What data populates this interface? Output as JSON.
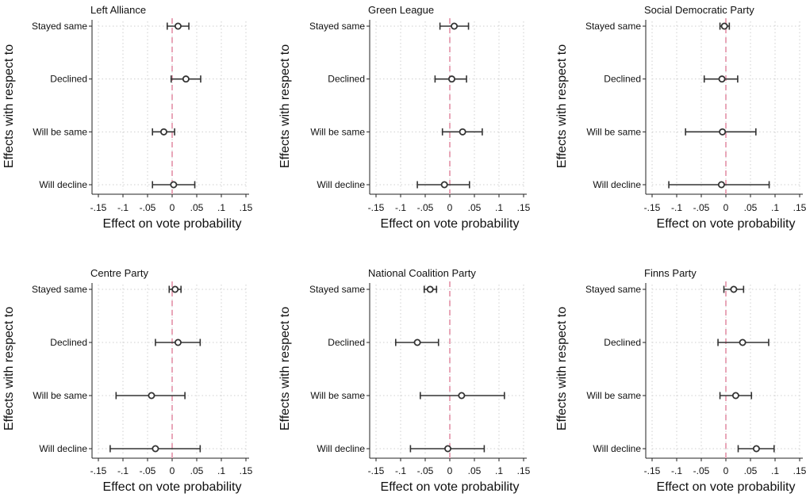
{
  "chart_data": [
    {
      "type": "coefficient-plot",
      "title": "Left Alliance",
      "xlabel": "Effect on vote probability",
      "ylabel": "Effects with respect to",
      "xlim": [
        -0.15,
        0.15
      ],
      "xticks": [
        "-.15",
        "-.1",
        "-.05",
        "0",
        ".05",
        ".1",
        ".15"
      ],
      "categories": [
        "Stayed same",
        "Declined",
        "Will be same",
        "Will decline"
      ],
      "estimate": [
        0.012,
        0.028,
        -0.017,
        0.003
      ],
      "ci_low": [
        -0.01,
        -0.002,
        -0.04,
        -0.04
      ],
      "ci_high": [
        0.034,
        0.058,
        0.005,
        0.046
      ],
      "reference_line": 0,
      "grid": true
    },
    {
      "type": "coefficient-plot",
      "title": "Green League",
      "xlabel": "Effect on vote probability",
      "ylabel": "Effects with respect to",
      "xlim": [
        -0.15,
        0.15
      ],
      "xticks": [
        "-.15",
        "-.1",
        "-.05",
        "0",
        ".05",
        ".1",
        ".15"
      ],
      "categories": [
        "Stayed same",
        "Declined",
        "Will be same",
        "Will decline"
      ],
      "estimate": [
        0.009,
        0.004,
        0.026,
        -0.011
      ],
      "ci_low": [
        -0.02,
        -0.03,
        -0.015,
        -0.066
      ],
      "ci_high": [
        0.038,
        0.034,
        0.066,
        0.04
      ],
      "reference_line": 0,
      "grid": true
    },
    {
      "type": "coefficient-plot",
      "title": "Social Democratic Party",
      "xlabel": "Effect on vote probability",
      "ylabel": "Effects with respect to",
      "xlim": [
        -0.15,
        0.15
      ],
      "xticks": [
        "-.15",
        "-.1",
        "-.05",
        "0",
        ".05",
        ".1",
        ".15"
      ],
      "categories": [
        "Stayed same",
        "Declined",
        "Will be same",
        "Will decline"
      ],
      "estimate": [
        -0.003,
        -0.008,
        -0.007,
        -0.009
      ],
      "ci_low": [
        -0.012,
        -0.044,
        -0.082,
        -0.116
      ],
      "ci_high": [
        0.007,
        0.024,
        0.061,
        0.088
      ],
      "reference_line": 0,
      "grid": true
    },
    {
      "type": "coefficient-plot",
      "title": "Centre Party",
      "xlabel": "Effect on vote probability",
      "ylabel": "Effects with respect to",
      "xlim": [
        -0.15,
        0.15
      ],
      "xticks": [
        "-.15",
        "-.1",
        "-.05",
        "0",
        ".05",
        ".1",
        ".15"
      ],
      "categories": [
        "Stayed same",
        "Declined",
        "Will be same",
        "Will decline"
      ],
      "estimate": [
        0.006,
        0.012,
        -0.042,
        -0.034
      ],
      "ci_low": [
        -0.006,
        -0.034,
        -0.114,
        -0.126
      ],
      "ci_high": [
        0.018,
        0.057,
        0.026,
        0.057
      ],
      "reference_line": 0,
      "grid": true
    },
    {
      "type": "coefficient-plot",
      "title": "National Coalition Party",
      "xlabel": "Effect on vote probability",
      "ylabel": "Effects with respect to",
      "xlim": [
        -0.15,
        0.15
      ],
      "xticks": [
        "-.15",
        "-.1",
        "-.05",
        "0",
        ".05",
        ".1",
        ".15"
      ],
      "categories": [
        "Stayed same",
        "Declined",
        "Will be same",
        "Will decline"
      ],
      "estimate": [
        -0.04,
        -0.066,
        0.024,
        -0.004
      ],
      "ci_low": [
        -0.052,
        -0.11,
        -0.06,
        -0.08
      ],
      "ci_high": [
        -0.027,
        -0.023,
        0.111,
        0.07
      ],
      "reference_line": 0,
      "grid": true
    },
    {
      "type": "coefficient-plot",
      "title": "Finns Party",
      "xlabel": "Effect on vote probability",
      "ylabel": "Effects with respect to",
      "xlim": [
        -0.15,
        0.15
      ],
      "xticks": [
        "-.15",
        "-.1",
        "-.05",
        "0",
        ".05",
        ".1",
        ".15"
      ],
      "categories": [
        "Stayed same",
        "Declined",
        "Will be same",
        "Will decline"
      ],
      "estimate": [
        0.016,
        0.034,
        0.02,
        0.062
      ],
      "ci_low": [
        -0.004,
        -0.016,
        -0.012,
        0.025
      ],
      "ci_high": [
        0.036,
        0.087,
        0.052,
        0.098
      ],
      "reference_line": 0,
      "grid": true
    }
  ],
  "colors": {
    "reference_line": "#e8a6b8",
    "grid": "#cfcfcf",
    "marker": "#333333",
    "axis": "#222222"
  }
}
